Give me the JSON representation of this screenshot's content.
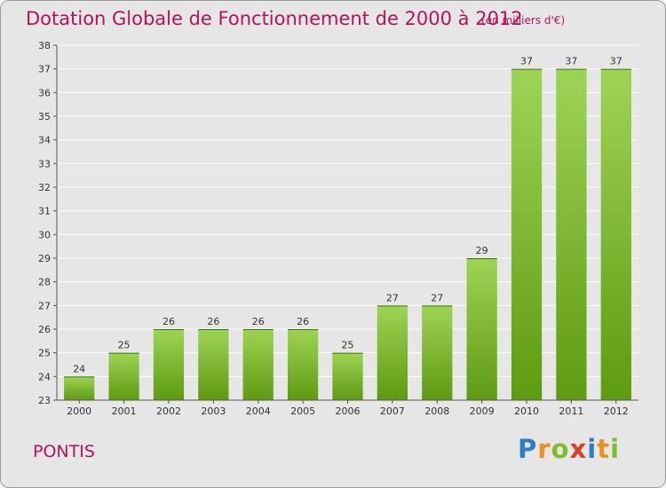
{
  "title": "Dotation Globale de Fonctionnement de 2000 à 2012",
  "subtitle": "(en milliers d'€)",
  "commune": "PONTIS",
  "logo": {
    "text": "Proxiti",
    "letters": [
      "P",
      "r",
      "o",
      "x",
      "i",
      "t",
      "i"
    ],
    "colors": [
      "#2b7fc9",
      "#f28c1e",
      "#7cbf2a",
      "#e23b2a",
      "#2b7fc9",
      "#f28c1e",
      "#7cbf2a"
    ]
  },
  "colors": {
    "accent": "#b5135b",
    "bar_top": "#9ed455",
    "bar_bottom": "#5e9a12",
    "grid": "#ffffff",
    "background": "#e6e6e6"
  },
  "chart_data": {
    "type": "bar",
    "categories": [
      "2000",
      "2001",
      "2002",
      "2003",
      "2004",
      "2005",
      "2006",
      "2007",
      "2008",
      "2009",
      "2010",
      "2011",
      "2012"
    ],
    "values": [
      24,
      25,
      26,
      26,
      26,
      26,
      25,
      27,
      27,
      29,
      37,
      37,
      37
    ],
    "title": "Dotation Globale de Fonctionnement de 2000 à 2012",
    "subtitle": "(en milliers d'€)",
    "xlabel": "",
    "ylabel": "",
    "ylim": [
      23,
      38
    ],
    "yticks": [
      23,
      24,
      25,
      26,
      27,
      28,
      29,
      30,
      31,
      32,
      33,
      34,
      35,
      36,
      37,
      38
    ],
    "grid": true,
    "legend": "none"
  }
}
